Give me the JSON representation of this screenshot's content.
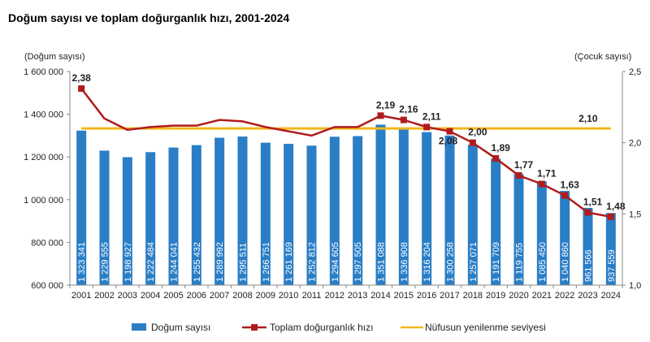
{
  "chart_data": {
    "type": "bar+line",
    "title": "Doğum sayısı ve toplam doğurganlık hızı, 2001-2024",
    "ylabel_left": "(Doğum sayısı)",
    "ylabel_right": "(Çocuk sayısı)",
    "ylim_left": [
      600000,
      1600000
    ],
    "ylim_right": [
      1.0,
      2.5
    ],
    "yticks_left": [
      "600 000",
      "800 000",
      "1 000 000",
      "1 200 000",
      "1 400 000",
      "1 600 000"
    ],
    "yticks_right": [
      "1,0",
      "1,5",
      "2,0",
      "2,5"
    ],
    "grid": false,
    "legend_position": "bottom",
    "categories": [
      "2001",
      "2002",
      "2003",
      "2004",
      "2005",
      "2006",
      "2007",
      "2008",
      "2009",
      "2010",
      "2011",
      "2012",
      "2013",
      "2014",
      "2015",
      "2016",
      "2017",
      "2018",
      "2019",
      "2020",
      "2021",
      "2022",
      "2023",
      "2024"
    ],
    "series": [
      {
        "name": "Doğum sayısı",
        "type": "bar",
        "axis": "left",
        "color": "#2a7ec6",
        "values": [
          1323341,
          1229555,
          1198927,
          1222484,
          1244041,
          1255432,
          1289992,
          1295511,
          1266751,
          1261169,
          1252812,
          1294605,
          1297505,
          1351088,
          1336908,
          1316204,
          1300258,
          1257071,
          1191709,
          1119755,
          1085450,
          1040860,
          961566,
          937559
        ],
        "labels": [
          "1 323 341",
          "1 229 555",
          "1 198 927",
          "1 222 484",
          "1 244 041",
          "1 255 432",
          "1 289 992",
          "1 295 511",
          "1 266 751",
          "1 261 169",
          "1 252 812",
          "1 294 605",
          "1 297 505",
          "1 351 088",
          "1 336 908",
          "1 316 204",
          "1 300 258",
          "1 257 071",
          "1 191 709",
          "1 119 755",
          "1 085 450",
          "1 040 860",
          "961 566",
          "937 559"
        ]
      },
      {
        "name": "Toplam doğurganlık hızı",
        "type": "line",
        "axis": "right",
        "color": "#b01c1c",
        "values": [
          2.38,
          2.17,
          2.09,
          2.11,
          2.12,
          2.12,
          2.16,
          2.15,
          2.11,
          2.08,
          2.05,
          2.11,
          2.11,
          2.19,
          2.16,
          2.11,
          2.08,
          2.0,
          1.89,
          1.77,
          1.71,
          1.63,
          1.51,
          1.48
        ],
        "labels": [
          "2,38",
          null,
          null,
          null,
          null,
          null,
          null,
          null,
          null,
          null,
          null,
          null,
          null,
          "2,19",
          "2,16",
          "2,11",
          "2,08",
          "2,00",
          "1,89",
          "1,77",
          "1,71",
          "1,63",
          "1,51",
          "1,48"
        ]
      },
      {
        "name": "Nüfusun yenilenme seviyesi",
        "type": "line",
        "axis": "right",
        "color": "#f2b61b",
        "value": 2.1,
        "label": "2,10"
      }
    ]
  }
}
